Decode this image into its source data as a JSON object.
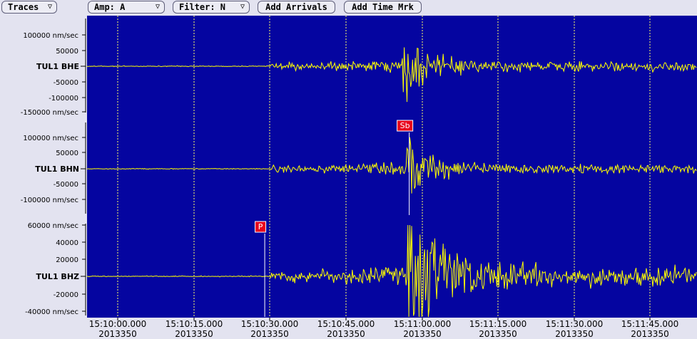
{
  "toolbar": {
    "traces_label": "Traces",
    "amp_label": "Amp: A",
    "filter_label": "Filter: N",
    "add_arrivals_label": "Add Arrivals",
    "add_time_mark_label": "Add Time Mrk",
    "dropdown_arrow": "▽"
  },
  "colors": {
    "plot_background": "#0505a0",
    "trace": "#ffff00",
    "grid": "#ffff66",
    "pick_marker": "#e8001c",
    "page_background": "#e3e3f0"
  },
  "chart_data": {
    "type": "line",
    "grid": true,
    "x_unit": "time",
    "x_ticks": [
      {
        "time": "15:10:00.000",
        "day": "2013350"
      },
      {
        "time": "15:10:15.000",
        "day": "2013350"
      },
      {
        "time": "15:10:30.000",
        "day": "2013350"
      },
      {
        "time": "15:10:45.000",
        "day": "2013350"
      },
      {
        "time": "15:11:00.000",
        "day": "2013350"
      },
      {
        "time": "15:11:15.000",
        "day": "2013350"
      },
      {
        "time": "15:11:30.000",
        "day": "2013350"
      },
      {
        "time": "15:11:45.000",
        "day": "2013350"
      }
    ],
    "xlim_seconds_after_15_09_57": [
      0,
      100
    ],
    "traces": [
      {
        "name": "TUL1 BHE",
        "ylim": [
          -150000,
          150000
        ],
        "y_ticks": [
          "100000 nm/sec",
          "50000",
          "-50000",
          "-100000",
          "-150000 nm/sec"
        ],
        "y_tick_values": [
          100000,
          50000,
          -50000,
          -100000,
          -150000
        ],
        "onset_time": "15:10:30",
        "peak_time": "15:10:58",
        "peak_amplitude": 140000,
        "picks": []
      },
      {
        "name": "TUL1 BHN",
        "ylim": [
          -150000,
          150000
        ],
        "y_ticks": [
          "100000 nm/sec",
          "50000",
          "-50000",
          "-100000 nm/sec"
        ],
        "y_tick_values": [
          100000,
          50000,
          -50000,
          -100000
        ],
        "onset_time": "15:10:30",
        "peak_time": "15:10:59",
        "peak_amplitude": 140000,
        "picks": [
          {
            "label": "Sb",
            "time": "15:10:57.5"
          }
        ]
      },
      {
        "name": "TUL1 BHZ",
        "ylim": [
          -43000,
          60000
        ],
        "y_ticks": [
          "60000 nm/sec",
          "40000",
          "20000",
          "-20000",
          "-40000 nm/sec"
        ],
        "y_tick_values": [
          60000,
          40000,
          20000,
          -20000,
          -40000
        ],
        "onset_time": "15:10:30",
        "peak_time": "15:10:59",
        "peak_amplitude": 60000,
        "picks": [
          {
            "label": "P",
            "time": "15:10:29"
          }
        ]
      }
    ]
  }
}
